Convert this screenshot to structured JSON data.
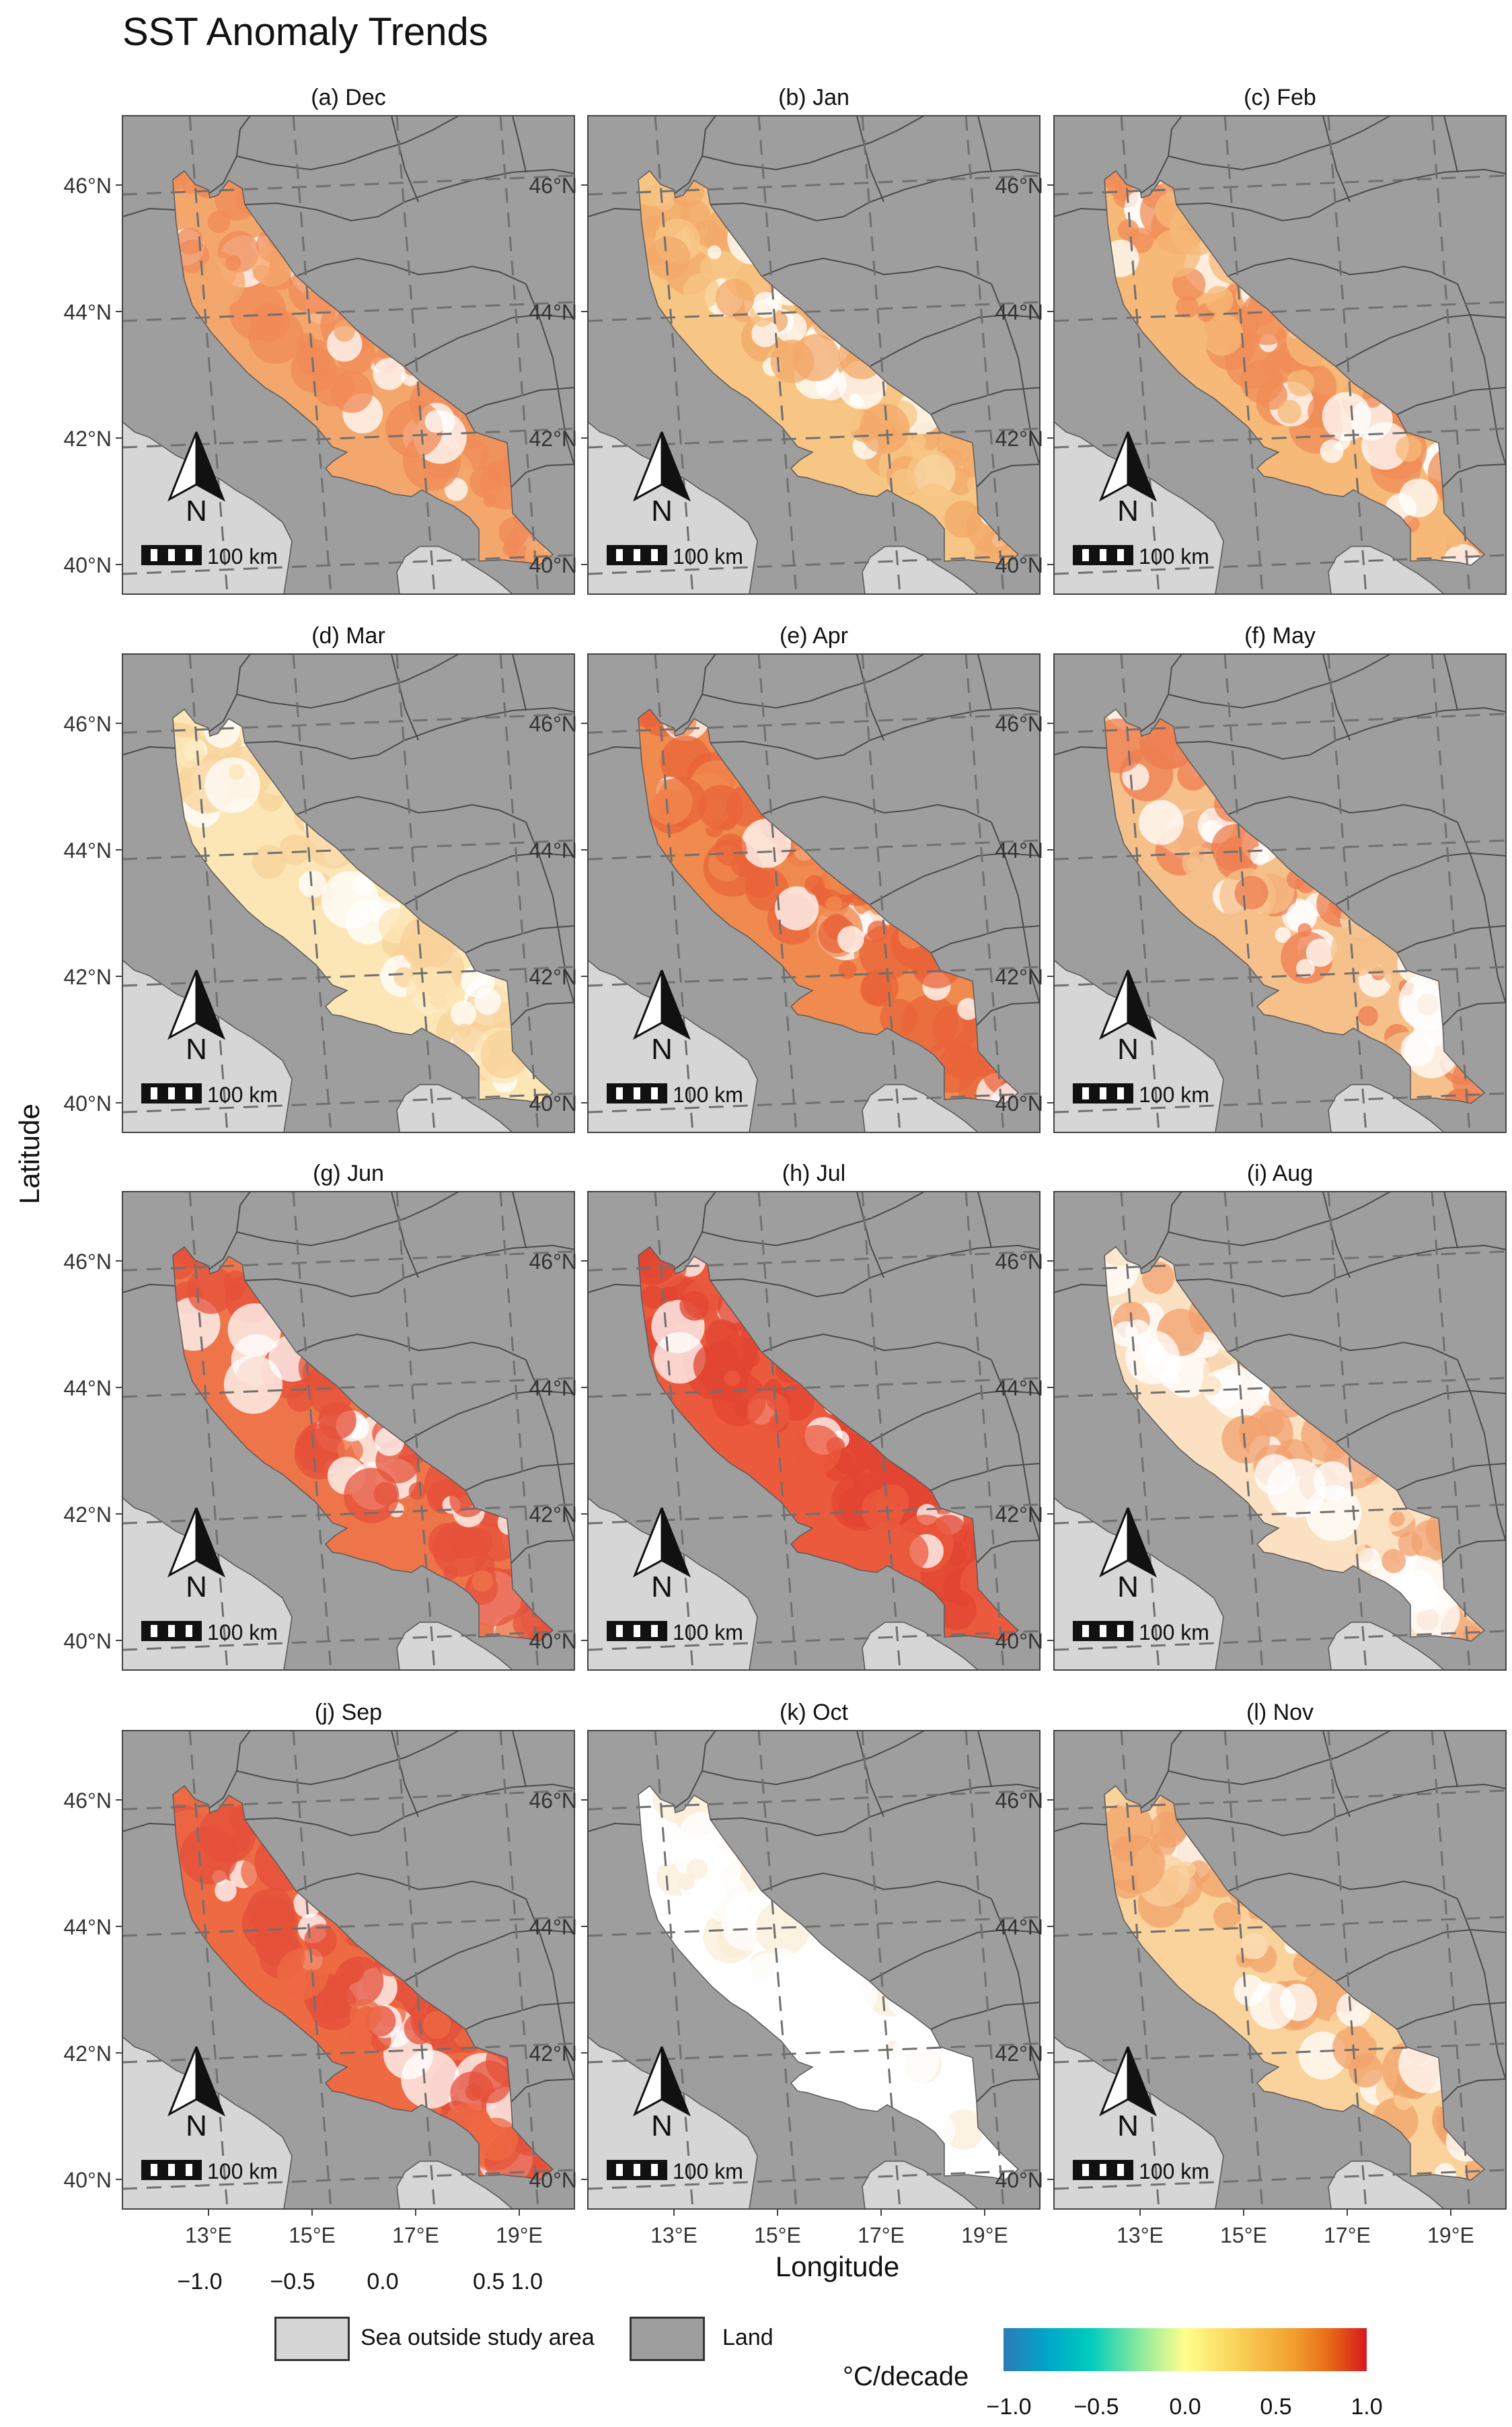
{
  "title": "SST Anomaly Trends",
  "axes": {
    "ylabel": "Latitude",
    "xlabel": "Longitude",
    "lat_ticks": [
      "46°N",
      "44°N",
      "42°N",
      "40°N"
    ],
    "lon_ticks": [
      "13°E",
      "15°E",
      "17°E",
      "19°E"
    ]
  },
  "panels": [
    {
      "label": "(a) Dec",
      "palette": [
        "#f4a76c",
        "#f08a55"
      ],
      "mix": 0.55
    },
    {
      "label": "(b) Jan",
      "palette": [
        "#f7c584",
        "#f3a868"
      ],
      "mix": 0.5
    },
    {
      "label": "(c) Feb",
      "palette": [
        "#f6b977",
        "#f08c57"
      ],
      "mix": 0.5
    },
    {
      "label": "(d) Mar",
      "palette": [
        "#fce6b6",
        "#f8d29a"
      ],
      "mix": 0.45
    },
    {
      "label": "(e) Apr",
      "palette": [
        "#f08a4f",
        "#e9643a"
      ],
      "mix": 0.55
    },
    {
      "label": "(f) May",
      "palette": [
        "#f6c08a",
        "#ee7e50"
      ],
      "mix": 0.45
    },
    {
      "label": "(g) Jun",
      "palette": [
        "#ee7549",
        "#e6523a"
      ],
      "mix": 0.55
    },
    {
      "label": "(h) Jul",
      "palette": [
        "#eb5a3d",
        "#e24631"
      ],
      "mix": 0.6
    },
    {
      "label": "(i) Aug",
      "palette": [
        "#fbe1c2",
        "#f2a06d"
      ],
      "mix": 0.35
    },
    {
      "label": "(j) Sep",
      "palette": [
        "#ed6a43",
        "#e4503a"
      ],
      "mix": 0.6
    },
    {
      "label": "(k) Oct",
      "palette": [
        "#ffffff",
        "#fbeed8"
      ],
      "mix": 0.2
    },
    {
      "label": "(l) Nov",
      "palette": [
        "#f9d29c",
        "#f2a36b"
      ],
      "mix": 0.45
    }
  ],
  "map_overlays": {
    "north_label": "N",
    "scale_text": "100 km"
  },
  "stray_labels": [
    "−1.0",
    "−0.5",
    "0.0",
    "0.5 1.0"
  ],
  "legend": {
    "sea_label": "Sea outside study area",
    "land_label": "Land",
    "sea_color": "#d6d6d6",
    "land_color": "#9e9e9e"
  },
  "colorbar": {
    "title": "°C/decade",
    "ticks": [
      "−1.0",
      "−0.5",
      "0.0",
      "0.5",
      "1.0"
    ]
  }
}
